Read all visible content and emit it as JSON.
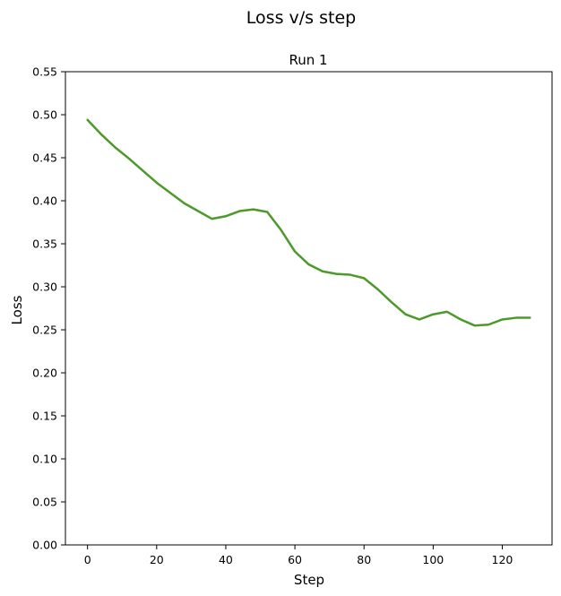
{
  "chart_data": {
    "type": "line",
    "title": "Loss v/s step",
    "subtitle": "Run 1",
    "xlabel": "Step",
    "ylabel": "Loss",
    "xlim": [
      -6.4,
      134.4
    ],
    "ylim": [
      0.0,
      0.55
    ],
    "xticks": [
      "0",
      "20",
      "40",
      "60",
      "80",
      "100",
      "120"
    ],
    "xtick_values": [
      0,
      20,
      40,
      60,
      80,
      100,
      120
    ],
    "yticks": [
      "0.00",
      "0.05",
      "0.10",
      "0.15",
      "0.20",
      "0.25",
      "0.30",
      "0.35",
      "0.40",
      "0.45",
      "0.50",
      "0.55"
    ],
    "ytick_values": [
      0.0,
      0.05,
      0.1,
      0.15,
      0.2,
      0.25,
      0.3,
      0.35,
      0.4,
      0.45,
      0.5,
      0.55
    ],
    "grid": false,
    "line_color": "#4c9a2a",
    "series": [
      {
        "x": [
          0,
          4,
          8,
          12,
          16,
          20,
          24,
          28,
          32,
          36,
          40,
          44,
          48,
          52,
          56,
          60,
          64,
          68,
          72,
          76,
          80,
          84,
          88,
          92,
          96,
          100,
          104,
          108,
          112,
          116,
          120,
          124,
          128
        ],
        "values": [
          0.494,
          0.477,
          0.462,
          0.449,
          0.435,
          0.421,
          0.409,
          0.397,
          0.388,
          0.379,
          0.382,
          0.388,
          0.39,
          0.387,
          0.366,
          0.341,
          0.326,
          0.318,
          0.315,
          0.314,
          0.31,
          0.297,
          0.282,
          0.268,
          0.262,
          0.268,
          0.271,
          0.262,
          0.255,
          0.256,
          0.262,
          0.264,
          0.264
        ]
      }
    ]
  }
}
